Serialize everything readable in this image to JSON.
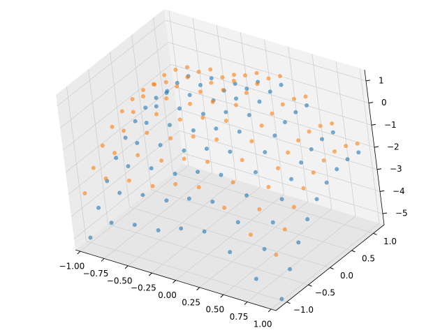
{
  "chart_data": {
    "type": "scatter3d",
    "grid": true,
    "x": [
      -1,
      -0.75,
      -0.5,
      -0.25,
      0,
      0.25,
      0.5,
      0.75,
      1
    ],
    "y": [
      -1,
      -0.75,
      -0.5,
      -0.25,
      0,
      0.25,
      0.5,
      0.75,
      1
    ],
    "xlim": [
      -1.05,
      1.05
    ],
    "ylim": [
      -1.25,
      1.25
    ],
    "zlim": [
      -5.5,
      1.5
    ],
    "xticks": [
      {
        "value": -1,
        "label": "−1.00"
      },
      {
        "value": -0.75,
        "label": "−0.75"
      },
      {
        "value": -0.5,
        "label": "−0.50"
      },
      {
        "value": -0.25,
        "label": "−0.25"
      },
      {
        "value": 0,
        "label": "0.00"
      },
      0.25,
      {
        "value": 0.5,
        "label": "0.50"
      },
      0.75,
      {
        "value": 1,
        "label": "1.00"
      }
    ],
    "yticks": [
      {
        "value": -1,
        "label": "−1.0"
      },
      {
        "value": -0.5,
        "label": "−0.5"
      },
      {
        "value": 0,
        "label": "0.0"
      },
      0.5,
      {
        "value": 1,
        "label": "1.0"
      }
    ],
    "zticks": [
      {
        "value": -5,
        "label": "−5"
      },
      {
        "value": -4,
        "label": "−4"
      },
      {
        "value": -3,
        "label": "−3"
      },
      {
        "value": -2,
        "label": "−2"
      },
      {
        "value": -1,
        "label": "−1"
      },
      0,
      1
    ],
    "series": [
      {
        "color": "#1f77b4",
        "z": [
          [
            -5.27,
            -4.27,
            -4.04,
            -3.96,
            -3.55,
            -3.36,
            -3.96,
            -4.85,
            -5.43
          ],
          [
            -4.31,
            -3.31,
            -3.08,
            -3.0,
            -2.59,
            -2.4,
            -3.0,
            -3.89,
            -4.47
          ],
          [
            -3.49,
            -2.49,
            -2.26,
            -2.18,
            -1.77,
            -1.58,
            -2.18,
            -3.07,
            -3.65
          ],
          [
            -2.83,
            -1.83,
            -1.6,
            -1.52,
            -1.11,
            -0.92,
            -1.52,
            -2.41,
            -2.99
          ],
          [
            -2.31,
            -1.31,
            -1.08,
            -1.0,
            -0.59,
            -0.4,
            -1.0,
            -1.89,
            -2.47
          ],
          [
            -1.95,
            -0.95,
            -0.72,
            -0.64,
            -0.23,
            -0.04,
            -0.64,
            -1.53,
            -2.11
          ],
          [
            -1.73,
            -0.73,
            -0.5,
            -0.42,
            -0.01,
            0.18,
            -0.42,
            -1.32,
            -1.89
          ],
          [
            -1.67,
            -0.67,
            -0.44,
            -0.36,
            0.05,
            0.24,
            -0.36,
            -1.25,
            -1.83
          ],
          [
            -1.75,
            -0.75,
            -0.52,
            -0.44,
            -0.03,
            0.16,
            -0.44,
            -1.33,
            -1.91
          ]
        ]
      },
      {
        "color": "#ff7f0e",
        "z": [
          [
            -3.27,
            -2.27,
            -2.04,
            -1.96,
            -1.55,
            -1.36,
            -1.96,
            -2.85,
            -3.43
          ],
          [
            -2.51,
            -1.51,
            -1.28,
            -1.2,
            -0.79,
            -0.6,
            -1.2,
            -2.09,
            -2.67
          ],
          [
            -1.89,
            -0.89,
            -0.66,
            -0.58,
            -0.17,
            0.02,
            -0.58,
            -1.47,
            -2.05
          ],
          [
            -1.43,
            -0.43,
            -0.2,
            -0.12,
            0.29,
            0.48,
            -0.12,
            -1.01,
            -1.59
          ],
          [
            -1.11,
            -0.11,
            0.12,
            0.2,
            0.61,
            0.8,
            0.2,
            -0.69,
            -1.27
          ],
          [
            -0.95,
            0.05,
            0.28,
            0.36,
            0.77,
            0.96,
            0.36,
            -0.53,
            -1.11
          ],
          [
            -0.93,
            0.07,
            0.3,
            0.38,
            0.79,
            0.98,
            0.38,
            -0.52,
            -1.09
          ],
          [
            -1.07,
            -0.07,
            0.16,
            0.24,
            0.65,
            0.84,
            0.24,
            -0.65,
            -1.23
          ],
          [
            -1.35,
            -0.35,
            -0.12,
            -0.04,
            0.37,
            0.56,
            -0.04,
            -0.93,
            -1.51
          ]
        ]
      }
    ]
  }
}
